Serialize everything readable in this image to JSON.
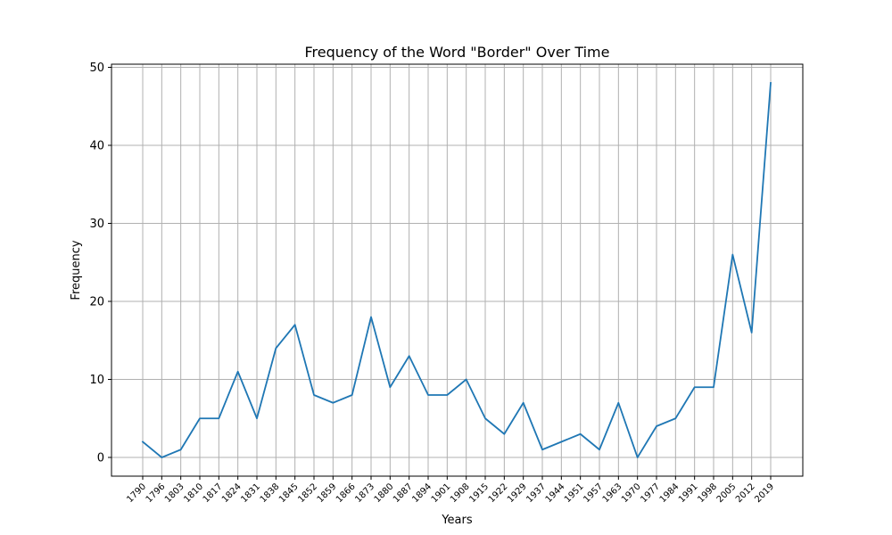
{
  "chart_data": {
    "type": "line",
    "title": "Frequency of the Word \"Border\" Over Time",
    "xlabel": "Years",
    "ylabel": "Frequency",
    "x": [
      "1790",
      "1796",
      "1803",
      "1810",
      "1817",
      "1824",
      "1831",
      "1838",
      "1845",
      "1852",
      "1859",
      "1866",
      "1873",
      "1880",
      "1887",
      "1894",
      "1901",
      "1908",
      "1915",
      "1922",
      "1929",
      "1937",
      "1944",
      "1951",
      "1957",
      "1963",
      "1970",
      "1977",
      "1984",
      "1991",
      "1998",
      "2005",
      "2012",
      "2019"
    ],
    "series": [
      {
        "values": [
          2,
          0,
          1,
          5,
          5,
          11,
          5,
          14,
          17,
          8,
          7,
          8,
          18,
          9,
          13,
          8,
          8,
          10,
          5,
          3,
          7,
          1,
          2,
          3,
          1,
          7,
          0,
          4,
          5,
          9,
          9,
          26,
          16,
          48
        ],
        "color": "#1f77b4"
      }
    ],
    "ylim": [
      -2.4,
      50.4
    ],
    "yticks": [
      0,
      10,
      20,
      30,
      40,
      50
    ],
    "grid": true,
    "legend": "none"
  }
}
